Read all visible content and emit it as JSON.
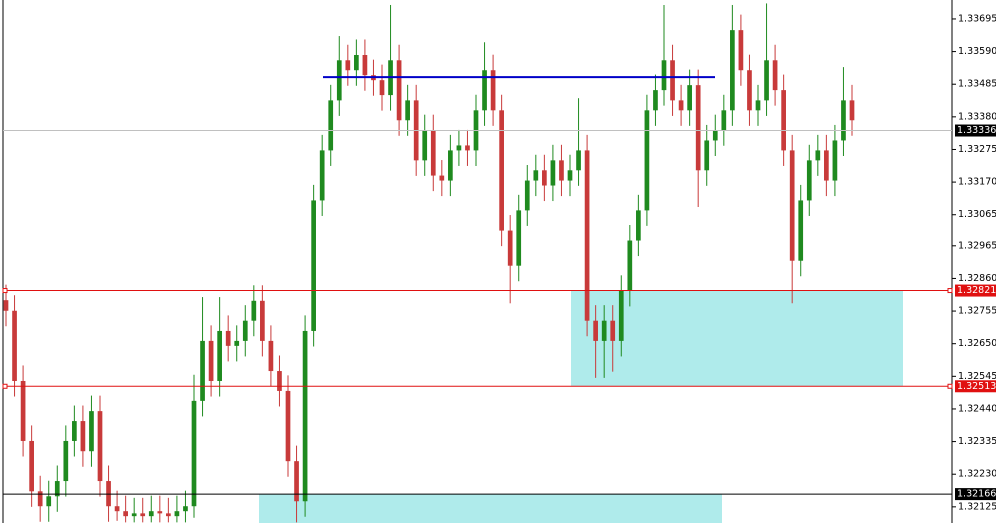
{
  "chart_data": {
    "type": "candlestick",
    "ylim": [
      1.32073,
      1.33756
    ],
    "yticks": [
      1.33695,
      {
        "value": 1.3359,
        "label": "1.33590"
      },
      1.33485,
      {
        "value": 1.3338,
        "label": "1.33380"
      },
      1.33275,
      {
        "value": 1.3317,
        "label": "1.33170"
      },
      1.33065,
      1.32965,
      {
        "value": 1.3286,
        "label": "1.32860"
      },
      1.32755,
      {
        "value": 1.3265,
        "label": "1.32650"
      },
      1.32545,
      {
        "value": 1.3244,
        "label": "1.32440"
      },
      1.32335,
      {
        "value": 1.3223,
        "label": "1.32230"
      },
      1.32125
    ],
    "up_color": "#1f8a1f",
    "down_color": "#c83a3a",
    "ohlc": [
      [
        1.3279,
        1.3284,
        1.32706,
        1.32756
      ],
      [
        1.32756,
        1.32806,
        1.3248,
        1.3253
      ],
      [
        1.3253,
        1.3258,
        1.32287,
        1.32337
      ],
      [
        1.32337,
        1.32387,
        1.32125,
        1.32175
      ],
      [
        1.32175,
        1.32225,
        1.32077,
        1.32127
      ],
      [
        1.32127,
        1.32209,
        1.32077,
        1.32159
      ],
      [
        1.32159,
        1.32258,
        1.32109,
        1.32208
      ],
      [
        1.32208,
        1.32387,
        1.32158,
        1.32337
      ],
      [
        1.32337,
        1.32451,
        1.32287,
        1.32401
      ],
      [
        1.32401,
        1.32451,
        1.32254,
        1.32304
      ],
      [
        1.32304,
        1.32483,
        1.32254,
        1.32433
      ],
      [
        1.32433,
        1.32483,
        1.32158,
        1.32208
      ],
      [
        1.32208,
        1.32258,
        1.32077,
        1.32127
      ],
      [
        1.32127,
        1.32177,
        1.3208,
        1.32111
      ],
      [
        1.32111,
        1.32161,
        1.32075,
        1.32095
      ],
      [
        1.32095,
        1.32154,
        1.32075,
        1.32104
      ],
      [
        1.32104,
        1.32154,
        1.32075,
        1.32095
      ],
      [
        1.32095,
        1.32161,
        1.32075,
        1.32111
      ],
      [
        1.32111,
        1.32161,
        1.32075,
        1.32104
      ],
      [
        1.32104,
        1.32154,
        1.32075,
        1.32095
      ],
      [
        1.32095,
        1.32161,
        1.32075,
        1.32111
      ],
      [
        1.32111,
        1.32177,
        1.32075,
        1.32127
      ],
      [
        1.32127,
        1.3255,
        1.3209,
        1.32466
      ],
      [
        1.32466,
        1.328,
        1.32416,
        1.32659
      ],
      [
        1.32659,
        1.32709,
        1.3248,
        1.3253
      ],
      [
        1.3253,
        1.328,
        1.3248,
        1.32691
      ],
      [
        1.32691,
        1.32741,
        1.32593,
        1.32643
      ],
      [
        1.32643,
        1.32709,
        1.32593,
        1.32659
      ],
      [
        1.32659,
        1.32774,
        1.32609,
        1.32724
      ],
      [
        1.32724,
        1.32838,
        1.32674,
        1.32788
      ],
      [
        1.32788,
        1.32838,
        1.32609,
        1.32659
      ],
      [
        1.32659,
        1.32709,
        1.32512,
        1.32562
      ],
      [
        1.32562,
        1.32612,
        1.32448,
        1.32498
      ],
      [
        1.32498,
        1.32548,
        1.32222,
        1.32272
      ],
      [
        1.32272,
        1.32322,
        1.32075,
        1.32143
      ],
      [
        1.32143,
        1.32741,
        1.32093,
        1.32691
      ],
      [
        1.32691,
        1.33161,
        1.32641,
        1.33111
      ],
      [
        1.33111,
        1.33322,
        1.33061,
        1.33272
      ],
      [
        1.33272,
        1.33483,
        1.33222,
        1.33433
      ],
      [
        1.33433,
        1.3364,
        1.33383,
        1.33562
      ],
      [
        1.33562,
        1.33612,
        1.3348,
        1.3353
      ],
      [
        1.3353,
        1.33629,
        1.3348,
        1.33579
      ],
      [
        1.33579,
        1.33629,
        1.33464,
        1.33514
      ],
      [
        1.33514,
        1.33564,
        1.33448,
        1.33498
      ],
      [
        1.33498,
        1.33548,
        1.334,
        1.3345
      ],
      [
        1.3345,
        1.3374,
        1.334,
        1.33562
      ],
      [
        1.33562,
        1.33612,
        1.33319,
        1.33369
      ],
      [
        1.33369,
        1.33483,
        1.33319,
        1.33433
      ],
      [
        1.33433,
        1.33483,
        1.3319,
        1.3324
      ],
      [
        1.3324,
        1.33387,
        1.3319,
        1.33337
      ],
      [
        1.33337,
        1.33387,
        1.33141,
        1.33191
      ],
      [
        1.33191,
        1.33241,
        1.33125,
        1.33175
      ],
      [
        1.33175,
        1.33322,
        1.33125,
        1.33272
      ],
      [
        1.33272,
        1.33338,
        1.33222,
        1.33288
      ],
      [
        1.33288,
        1.33338,
        1.33222,
        1.33272
      ],
      [
        1.33272,
        1.33451,
        1.33222,
        1.33401
      ],
      [
        1.33401,
        1.3362,
        1.33351,
        1.3353
      ],
      [
        1.3353,
        1.3358,
        1.33351,
        1.33401
      ],
      [
        1.33401,
        1.33451,
        1.32964,
        1.33014
      ],
      [
        1.33014,
        1.33064,
        1.3278,
        1.32901
      ],
      [
        1.32901,
        1.33129,
        1.32851,
        1.33079
      ],
      [
        1.33079,
        1.33225,
        1.33029,
        1.33175
      ],
      [
        1.33175,
        1.33258,
        1.33125,
        1.33208
      ],
      [
        1.33208,
        1.33258,
        1.33109,
        1.33159
      ],
      [
        1.33159,
        1.3329,
        1.33109,
        1.3324
      ],
      [
        1.3324,
        1.3329,
        1.33125,
        1.33175
      ],
      [
        1.33175,
        1.33258,
        1.33125,
        1.33208
      ],
      [
        1.33208,
        1.3344,
        1.33158,
        1.33272
      ],
      [
        1.33272,
        1.33322,
        1.32674,
        1.32724
      ],
      [
        1.32724,
        1.32774,
        1.3254,
        1.32659
      ],
      [
        1.32659,
        1.32774,
        1.3254,
        1.32724
      ],
      [
        1.32724,
        1.32774,
        1.3256,
        1.32659
      ],
      [
        1.32659,
        1.3287,
        1.32609,
        1.3282
      ],
      [
        1.3282,
        1.33032,
        1.3277,
        1.32982
      ],
      [
        1.32982,
        1.33129,
        1.32932,
        1.33079
      ],
      [
        1.33079,
        1.33451,
        1.33029,
        1.33401
      ],
      [
        1.33401,
        1.33516,
        1.33351,
        1.33466
      ],
      [
        1.33466,
        1.3374,
        1.33416,
        1.33562
      ],
      [
        1.33562,
        1.33612,
        1.33383,
        1.33433
      ],
      [
        1.33433,
        1.33483,
        1.33351,
        1.33401
      ],
      [
        1.33401,
        1.33532,
        1.33351,
        1.33482
      ],
      [
        1.33482,
        1.33532,
        1.3309,
        1.33208
      ],
      [
        1.33208,
        1.33354,
        1.33158,
        1.33304
      ],
      [
        1.33304,
        1.33387,
        1.33254,
        1.33337
      ],
      [
        1.33337,
        1.33451,
        1.33287,
        1.33401
      ],
      [
        1.33401,
        1.3374,
        1.33351,
        1.33659
      ],
      [
        1.33659,
        1.33709,
        1.3348,
        1.3353
      ],
      [
        1.3353,
        1.3358,
        1.33351,
        1.33401
      ],
      [
        1.33401,
        1.33483,
        1.33351,
        1.33433
      ],
      [
        1.33433,
        1.33745,
        1.33383,
        1.33562
      ],
      [
        1.33562,
        1.33612,
        1.33416,
        1.33466
      ],
      [
        1.33466,
        1.33516,
        1.33222,
        1.33272
      ],
      [
        1.33272,
        1.33322,
        1.3278,
        1.32917
      ],
      [
        1.32917,
        1.33161,
        1.32867,
        1.33111
      ],
      [
        1.33111,
        1.3329,
        1.33061,
        1.3324
      ],
      [
        1.3324,
        1.33322,
        1.3319,
        1.33272
      ],
      [
        1.33272,
        1.33322,
        1.33125,
        1.33175
      ],
      [
        1.33175,
        1.33354,
        1.33125,
        1.33304
      ],
      [
        1.33304,
        1.3354,
        1.33254,
        1.33433
      ],
      [
        1.33433,
        1.33483,
        1.33319,
        1.33369
      ]
    ],
    "levels": [
      {
        "value": 1.33336,
        "color": "#c0c0c0",
        "label_bg": "#000000"
      },
      {
        "value": 1.32821,
        "color": "#e01010",
        "label_bg": "#e01010"
      },
      {
        "value": 1.32513,
        "color": "#e01010",
        "label_bg": "#e01010"
      },
      {
        "value": 1.32166,
        "color": "#000000",
        "label_bg": "#000000"
      }
    ],
    "trend_line": {
      "value": 1.33508,
      "color": "#0000c8"
    },
    "zones": [
      {
        "from": 1.32821,
        "to": 1.32513,
        "color": "#afebeb"
      },
      {
        "from": 1.32166,
        "color": "#afebeb"
      }
    ]
  }
}
